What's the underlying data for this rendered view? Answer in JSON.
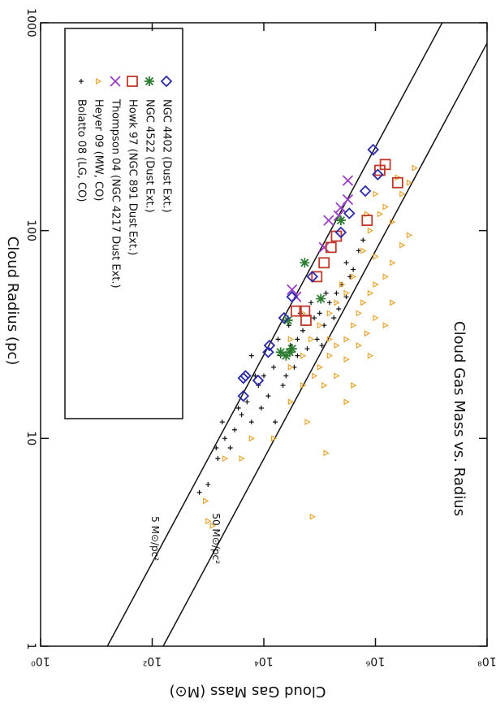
{
  "chart_data": {
    "type": "scatter",
    "title": "Cloud Gas Mass vs. Radius",
    "x_label": "Cloud Gas Mass (M⊙)",
    "y_label": "Cloud Radius (pc)",
    "x_log": true,
    "y_log": true,
    "xlim": [
      1,
      100000000
    ],
    "ylim": [
      1,
      1000
    ],
    "xticks": [
      {
        "value": 1,
        "label": "10⁰"
      },
      {
        "value": 100,
        "label": "10²"
      },
      {
        "value": 10000,
        "label": "10⁴"
      },
      {
        "value": 1000000,
        "label": "10⁶"
      },
      {
        "value": 100000000,
        "label": "10⁸"
      }
    ],
    "yticks": [
      1,
      10,
      100,
      1000
    ],
    "lines": [
      {
        "label": "5 M⊙/pc²",
        "sigma": 5
      },
      {
        "label": "50 M⊙/pc²",
        "sigma": 50
      }
    ],
    "legend": "top-left",
    "series": [
      {
        "name": "Bolatto 08 (LG, CO)",
        "color": "#111111",
        "marker": "plus",
        "x": [
          1500,
          2000,
          3000,
          2500,
          4000,
          5000,
          6000,
          8000,
          10000,
          12000,
          15000,
          20000,
          25000,
          30000,
          40000,
          50000,
          60000,
          80000,
          100000,
          120000,
          150000,
          200000,
          250000,
          300000,
          400000,
          500000,
          600000,
          1000,
          700,
          1800,
          3500,
          7000,
          9000,
          18000,
          22000,
          35000,
          45000,
          70000,
          90000,
          110000,
          130000,
          180000,
          220000,
          300000,
          350000,
          6000,
          16000,
          40000,
          1400,
          28000
        ],
        "values": [
          8,
          10,
          11,
          9,
          13,
          15,
          12,
          18,
          20,
          16,
          22,
          25,
          20,
          28,
          30,
          33,
          27,
          38,
          40,
          35,
          45,
          50,
          55,
          70,
          65,
          80,
          90,
          6,
          5.5,
          12,
          14,
          20,
          14,
          30,
          18,
          22,
          40,
          45,
          30,
          28,
          50,
          38,
          42,
          48,
          60,
          25,
          12,
          25,
          9,
          35
        ]
      },
      {
        "name": "Heyer 09 (MW, CO)",
        "color": "#e8a530",
        "marker": "triangle",
        "x": [
          1000,
          1200,
          900,
          2000,
          15000,
          74000,
          30000,
          50000,
          80000,
          100000,
          150000,
          200000,
          300000,
          400000,
          500000,
          600000,
          800000,
          1000000,
          1500000,
          2000000,
          3000000,
          4000000,
          2000000,
          1500000,
          3000000,
          4000000,
          2500000,
          1200000,
          800000,
          600000,
          400000,
          300000,
          200000,
          150000,
          100000,
          70000,
          50000,
          30000,
          120000,
          200000,
          300000,
          500000,
          700000,
          1000000,
          60000,
          300000,
          2000000,
          1500000,
          800000,
          400000,
          1000000,
          250000,
          4000,
          6000,
          150000,
          50000,
          30000,
          700000,
          1000000,
          5000000,
          130000
        ],
        "values": [
          4,
          3.8,
          5,
          8,
          10,
          4.2,
          15,
          18,
          20,
          22,
          25,
          28,
          30,
          35,
          40,
          45,
          50,
          55,
          60,
          70,
          85,
          95,
          110,
          130,
          150,
          170,
          180,
          120,
          100,
          80,
          60,
          50,
          45,
          40,
          35,
          30,
          25,
          22,
          18,
          20,
          24,
          28,
          32,
          38,
          12,
          15,
          45,
          35,
          25,
          18,
          75,
          55,
          8,
          10,
          30,
          40,
          30,
          120,
          150,
          200,
          8.5
        ]
      },
      {
        "name": "Thompson 04 (NGC 4217 Dust Ext.)",
        "color": "#9b3fc8",
        "marker": "cross",
        "x": [
          320000,
          320000,
          240000,
          145000,
          120000,
          220000,
          32000,
          38000
        ],
        "values": [
          174,
          141,
          129,
          112,
          83,
          118,
          52,
          48
        ]
      },
      {
        "name": "Howk 97 (NGC 891 Dust Ext.)",
        "color": "#c0392b",
        "marker": "square",
        "x": [
          1500000,
          1200000,
          2500000,
          710000,
          200000,
          160000,
          120000,
          89000,
          54000,
          38000,
          57000
        ],
        "values": [
          208,
          195,
          170,
          112,
          94,
          83,
          70,
          60,
          41,
          41,
          37
        ]
      },
      {
        "name": "NGC 4522 (Dust Ext.)",
        "color": "#2e7d32",
        "marker": "star",
        "x": [
          240000,
          54000,
          105000,
          27000,
          32000,
          29000,
          25000,
          20000
        ],
        "values": [
          112,
          70,
          47,
          37,
          27,
          26,
          25,
          26
        ]
      },
      {
        "name": "NGC 4402 (Dust Ext.)",
        "color": "#2a2aa8",
        "marker": "diamond",
        "x": [
          910000,
          1100000,
          660000,
          340000,
          240000,
          74000,
          32000,
          23000,
          12600,
          12000,
          4700,
          4300,
          7900,
          4300
        ],
        "values": [
          245,
          186,
          155,
          121,
          98,
          60,
          48,
          38,
          28,
          26,
          20,
          19.5,
          19,
          16
        ]
      }
    ]
  }
}
